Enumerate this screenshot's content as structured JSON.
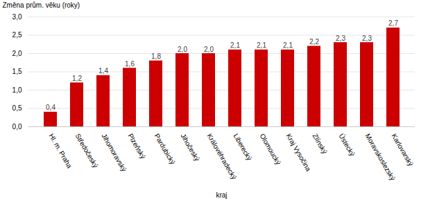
{
  "chart_data": {
    "type": "bar",
    "categories": [
      "Hl. m. Praha",
      "Středočeský",
      "Jihomoravský",
      "Plzeňský",
      "Pardubický",
      "Jihočeský",
      "Královéhradecký",
      "Liberecký",
      "Olomoucký",
      "Kraj Vysočina",
      "Zlínský",
      "Ústecký",
      "Moravskoslezský",
      "Karlovarský"
    ],
    "values": [
      0.4,
      1.2,
      1.4,
      1.6,
      1.8,
      2.0,
      2.0,
      2.1,
      2.1,
      2.1,
      2.2,
      2.3,
      2.3,
      2.7
    ],
    "value_labels": [
      "0,4",
      "1,2",
      "1,4",
      "1,6",
      "1,8",
      "2,0",
      "2,0",
      "2,1",
      "2,1",
      "2,1",
      "2,2",
      "2,3",
      "2,3",
      "2,7"
    ],
    "data_labels": true,
    "color": "#CC0000",
    "xlabel": "kraj",
    "ylabel": "Změna prům. věku (roky)",
    "ylim": [
      0,
      3.0
    ],
    "yticks": [
      {
        "value": 0.0,
        "label": "0,0"
      },
      {
        "value": 0.5,
        "label": "0,5"
      },
      {
        "value": 1.0,
        "label": "1,0"
      },
      {
        "value": 1.5,
        "label": "1,5"
      },
      {
        "value": 2.0,
        "label": "2,0"
      },
      {
        "value": 2.5,
        "label": "2,5"
      },
      {
        "value": 3.0,
        "label": "3,0"
      }
    ],
    "grid": true
  }
}
